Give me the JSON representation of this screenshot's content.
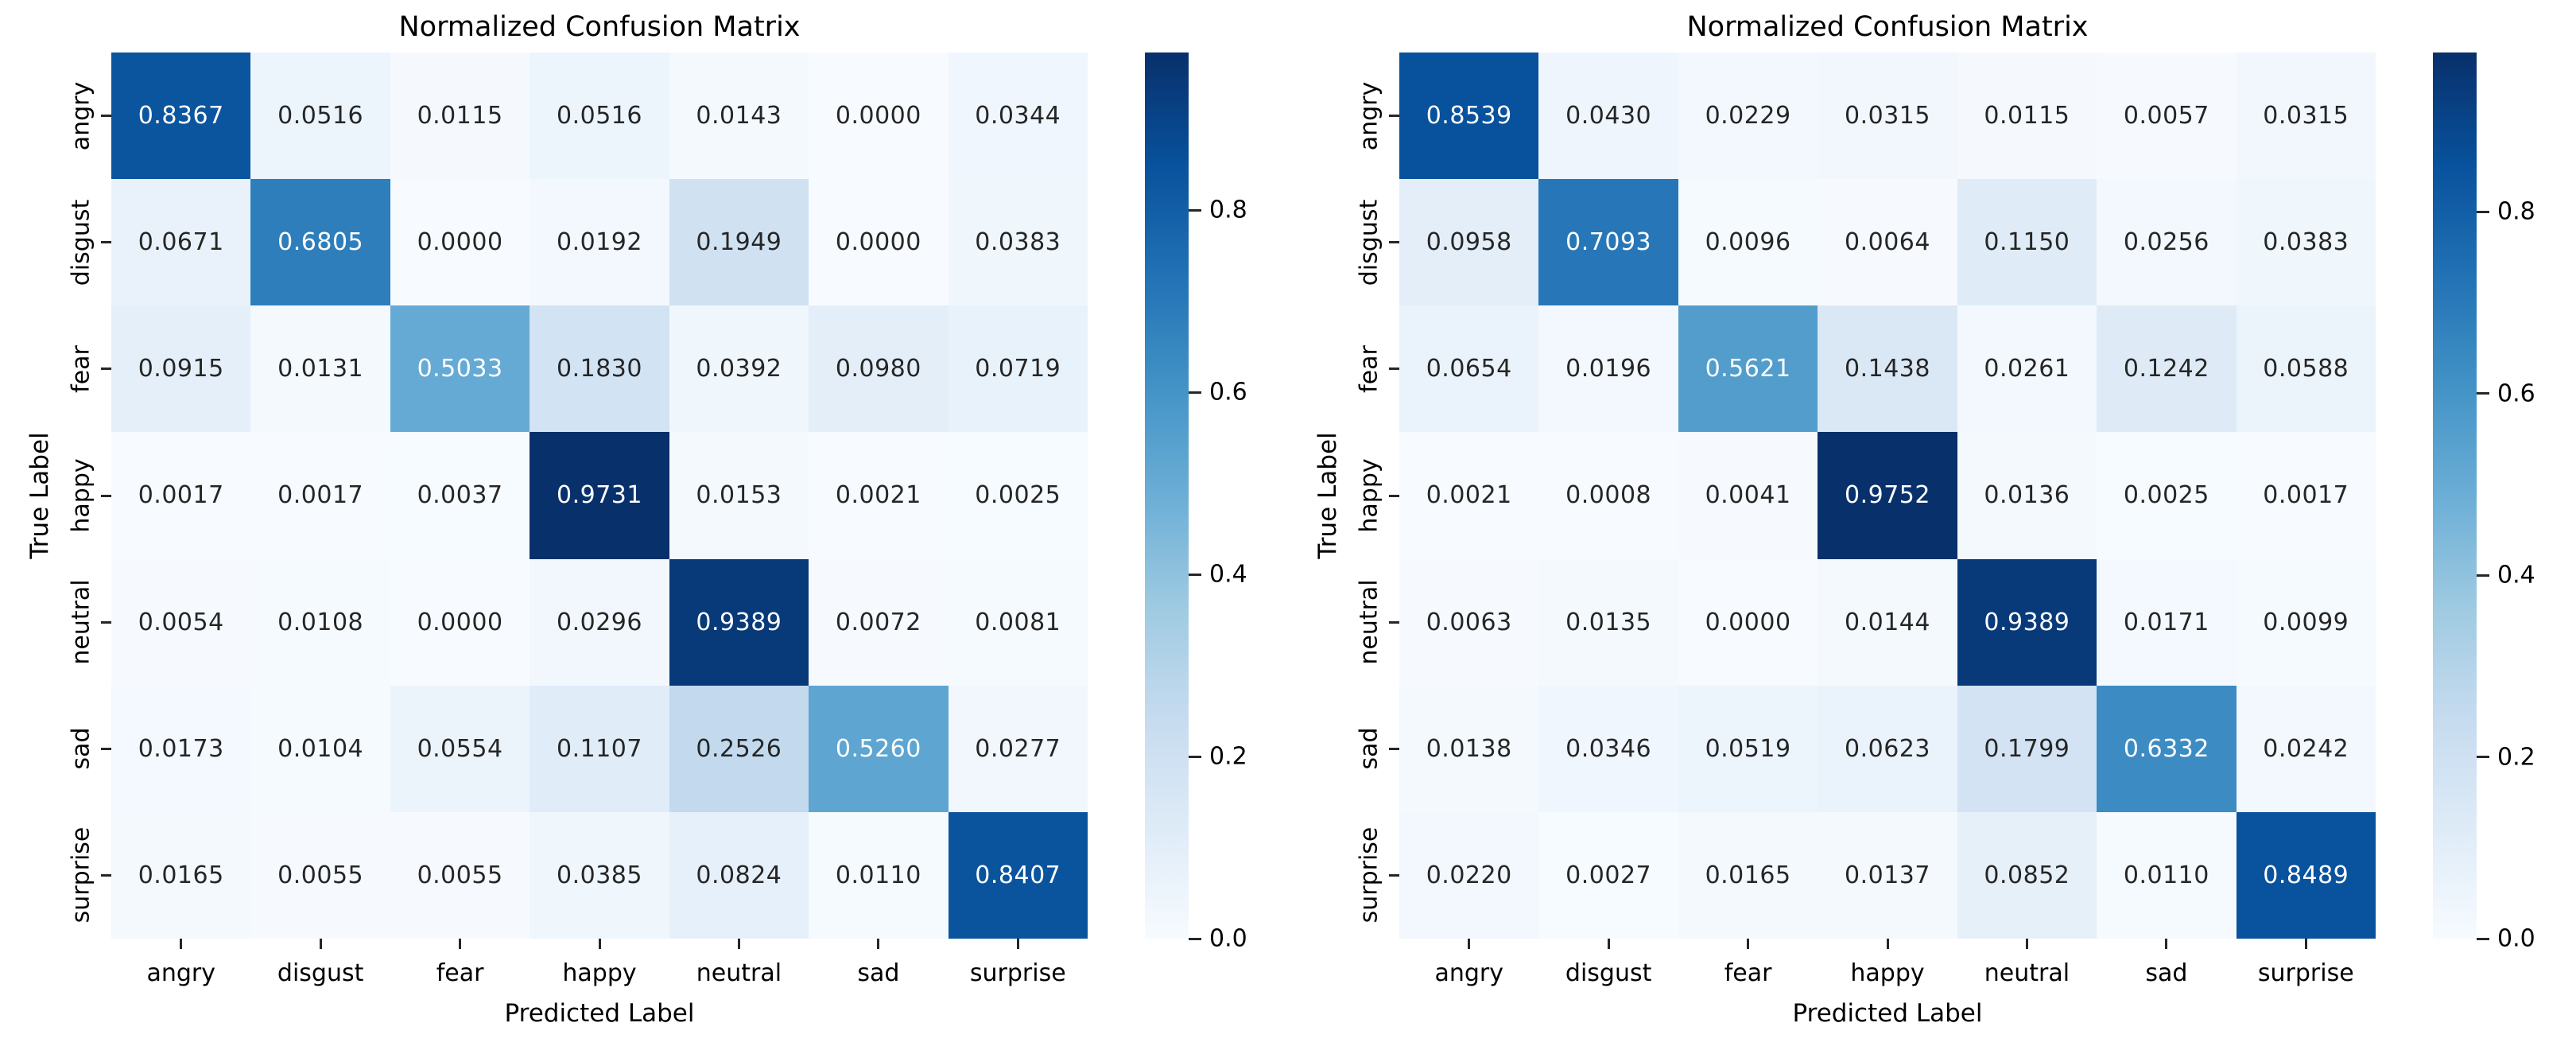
{
  "figure": {
    "background": "#ffffff"
  },
  "style": {
    "colormap": "Blues",
    "colormap_anchors": [
      "#f7fbff",
      "#deebf7",
      "#c6dbef",
      "#9ecae1",
      "#6baed6",
      "#4292c6",
      "#2171b5",
      "#08519c",
      "#08306b"
    ],
    "annotation_dark_text": "#262626",
    "annotation_light_text": "#ffffff",
    "axis_text_color": "#000000",
    "tick_color": "#262626"
  },
  "chart_data": [
    {
      "type": "heatmap",
      "title": "Normalized Confusion Matrix",
      "xlabel": "Predicted Label",
      "ylabel": "True Label",
      "x_categories": [
        "angry",
        "disgust",
        "fear",
        "happy",
        "neutral",
        "sad",
        "surprise"
      ],
      "y_categories": [
        "angry",
        "disgust",
        "fear",
        "happy",
        "neutral",
        "sad",
        "surprise"
      ],
      "values": [
        [
          0.8367,
          0.0516,
          0.0115,
          0.0516,
          0.0143,
          0.0,
          0.0344
        ],
        [
          0.0671,
          0.6805,
          0.0,
          0.0192,
          0.1949,
          0.0,
          0.0383
        ],
        [
          0.0915,
          0.0131,
          0.5033,
          0.183,
          0.0392,
          0.098,
          0.0719
        ],
        [
          0.0017,
          0.0017,
          0.0037,
          0.9731,
          0.0153,
          0.0021,
          0.0025
        ],
        [
          0.0054,
          0.0108,
          0.0,
          0.0296,
          0.9389,
          0.0072,
          0.0081
        ],
        [
          0.0173,
          0.0104,
          0.0554,
          0.1107,
          0.2526,
          0.526,
          0.0277
        ],
        [
          0.0165,
          0.0055,
          0.0055,
          0.0385,
          0.0824,
          0.011,
          0.8407
        ]
      ],
      "vmin": 0.0,
      "vmax": 0.9731,
      "annotation_decimals": 4,
      "colorbar_ticks": [
        "0.0",
        "0.2",
        "0.4",
        "0.6",
        "0.8"
      ],
      "grid": false,
      "legend": "colorbar-right"
    },
    {
      "type": "heatmap",
      "title": "Normalized Confusion Matrix",
      "xlabel": "Predicted Label",
      "ylabel": "True Label",
      "x_categories": [
        "angry",
        "disgust",
        "fear",
        "happy",
        "neutral",
        "sad",
        "surprise"
      ],
      "y_categories": [
        "angry",
        "disgust",
        "fear",
        "happy",
        "neutral",
        "sad",
        "surprise"
      ],
      "values": [
        [
          0.8539,
          0.043,
          0.0229,
          0.0315,
          0.0115,
          0.0057,
          0.0315
        ],
        [
          0.0958,
          0.7093,
          0.0096,
          0.0064,
          0.115,
          0.0256,
          0.0383
        ],
        [
          0.0654,
          0.0196,
          0.5621,
          0.1438,
          0.0261,
          0.1242,
          0.0588
        ],
        [
          0.0021,
          0.0008,
          0.0041,
          0.9752,
          0.0136,
          0.0025,
          0.0017
        ],
        [
          0.0063,
          0.0135,
          0.0,
          0.0144,
          0.9389,
          0.0171,
          0.0099
        ],
        [
          0.0138,
          0.0346,
          0.0519,
          0.0623,
          0.1799,
          0.6332,
          0.0242
        ],
        [
          0.022,
          0.0027,
          0.0165,
          0.0137,
          0.0852,
          0.011,
          0.8489
        ]
      ],
      "vmin": 0.0,
      "vmax": 0.9752,
      "annotation_decimals": 4,
      "colorbar_ticks": [
        "0.0",
        "0.2",
        "0.4",
        "0.6",
        "0.8"
      ],
      "grid": false,
      "legend": "colorbar-right"
    }
  ]
}
